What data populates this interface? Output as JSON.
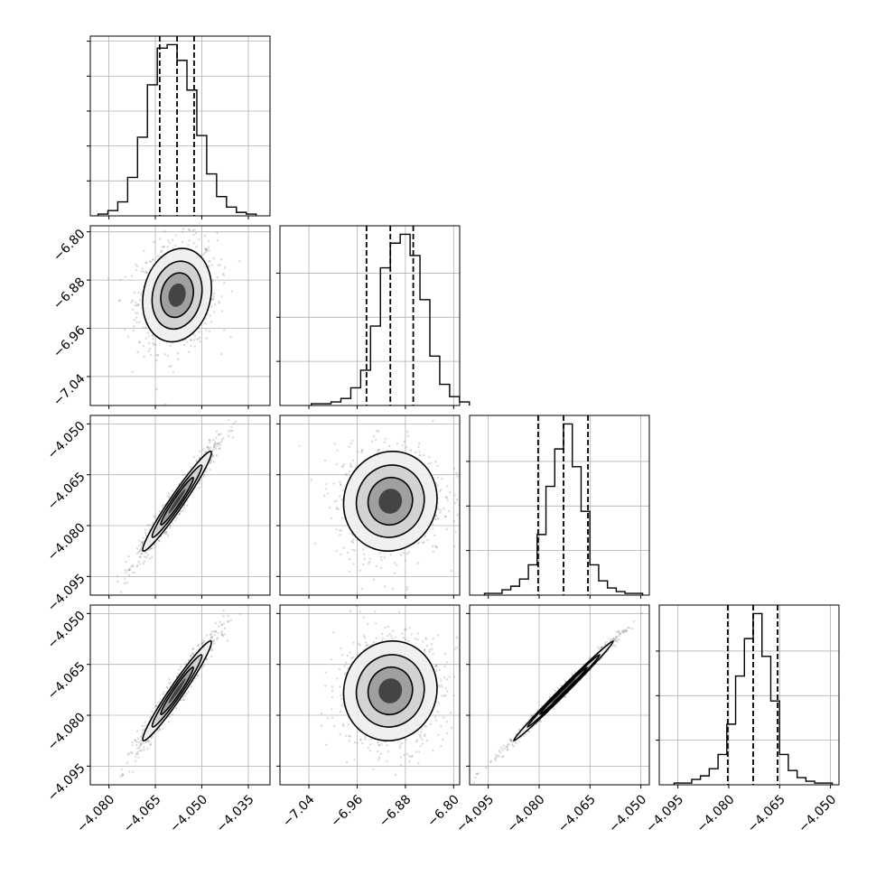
{
  "chart_data": {
    "type": "corner",
    "grid": true,
    "parameters": [
      {
        "median": -4.058,
        "q16": -4.0636,
        "q84": -4.0525,
        "hist_range": [
          -4.086,
          -4.028
        ],
        "ticks": [
          -4.08,
          -4.065,
          -4.05,
          -4.035
        ],
        "tick_labels": [
          "−4.080",
          "−4.065",
          "−4.050",
          "−4.035"
        ]
      },
      {
        "median": -6.905,
        "q16": -6.9445,
        "q84": -6.867,
        "hist_range": [
          -7.088,
          -6.79
        ],
        "ticks": [
          -7.04,
          -6.96,
          -6.88,
          -6.8
        ],
        "tick_labels": [
          "−7.04",
          "−6.96",
          "−6.88",
          "−6.80"
        ]
      },
      {
        "median": -4.0728,
        "q16": -4.0803,
        "q84": -4.0656,
        "hist_range": [
          -4.1005,
          -4.0475
        ],
        "ticks": [
          -4.095,
          -4.08,
          -4.065,
          -4.05
        ],
        "tick_labels": [
          "−4.095",
          "−4.080",
          "−4.065",
          "−4.050"
        ]
      },
      {
        "median": -4.0728,
        "q16": -4.0803,
        "q84": -4.0656,
        "hist_range": [
          -4.1005,
          -4.0475
        ],
        "ticks": [
          -4.095,
          -4.08,
          -4.065,
          -4.05
        ],
        "tick_labels": [
          "−4.095",
          "−4.080",
          "−4.065",
          "−4.050"
        ]
      }
    ],
    "histograms": [
      [
        1,
        3,
        8,
        22,
        45,
        75,
        96,
        98,
        89,
        72,
        46,
        24,
        11,
        5,
        2,
        1
      ],
      [
        1,
        1,
        2,
        4,
        10,
        20,
        45,
        78,
        92,
        97,
        85,
        60,
        28,
        12,
        5,
        2
      ],
      [
        1,
        1,
        3,
        5,
        9,
        17,
        34,
        61,
        82,
        96,
        72,
        47,
        17,
        8,
        4,
        2,
        1,
        1
      ],
      [
        1,
        1,
        3,
        5,
        9,
        17,
        34,
        61,
        82,
        96,
        72,
        47,
        17,
        8,
        4,
        2,
        1,
        1
      ]
    ],
    "hist_max_ticks": [
      [
        20,
        40,
        60,
        80,
        100
      ],
      [
        25,
        50,
        75
      ],
      [
        25,
        50,
        75
      ],
      [
        25,
        50,
        75
      ]
    ],
    "pair_2d": [
      {
        "row": 1,
        "col": 0,
        "corr": 0.15
      },
      {
        "row": 2,
        "col": 0,
        "corr": 0.97
      },
      {
        "row": 2,
        "col": 1,
        "corr": 0.05
      },
      {
        "row": 3,
        "col": 0,
        "corr": 0.97
      },
      {
        "row": 3,
        "col": 1,
        "corr": 0.05
      },
      {
        "row": 3,
        "col": 2,
        "corr": 0.995
      }
    ]
  }
}
